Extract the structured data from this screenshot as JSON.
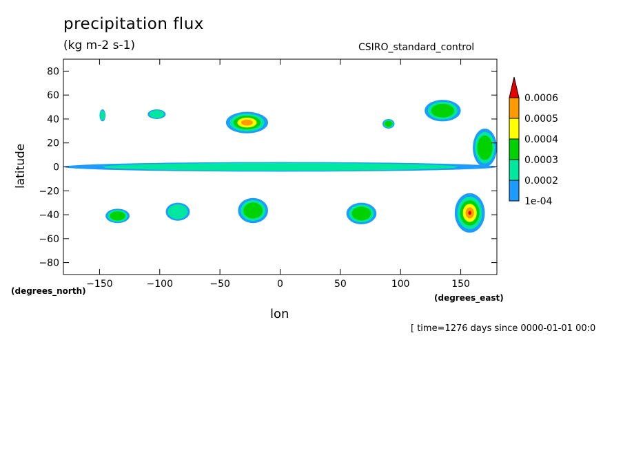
{
  "header": {
    "title": "precipitation flux",
    "units": "(kg m-2 s-1)",
    "model": "CSIRO_standard_control",
    "time_note": "[ time=1276 days since 0000-01-01 00:0"
  },
  "chart_data": {
    "type": "heatmap",
    "xlabel": "lon",
    "ylabel": "latitude",
    "x_units_label": "(degrees_east)",
    "y_units_label": "(degrees_north)",
    "xlim": [
      -180,
      180
    ],
    "ylim": [
      -90,
      90
    ],
    "x_ticks": [
      -150,
      -100,
      -50,
      0,
      50,
      100,
      150
    ],
    "y_ticks": [
      80,
      60,
      40,
      20,
      0,
      -20,
      -40,
      -60,
      -80
    ],
    "grid": false,
    "colorbar": {
      "levels": [
        "1e-04",
        "0.0002",
        "0.0003",
        "0.0004",
        "0.0005",
        "0.0006"
      ],
      "colors": [
        "#1e9bff",
        "#00e8a0",
        "#00d200",
        "#ffff00",
        "#ff9a00",
        "#e60000"
      ],
      "placement": "right"
    },
    "features": [
      {
        "lon": [
          -180,
          180
        ],
        "lat": [
          -4,
          4
        ],
        "level": 1
      },
      {
        "lon": [
          -150,
          -145
        ],
        "lat": [
          38,
          48
        ],
        "level": 1
      },
      {
        "lon": [
          -110,
          -95
        ],
        "lat": [
          40,
          48
        ],
        "level": 1
      },
      {
        "lon": [
          -45,
          -10
        ],
        "lat": [
          28,
          46
        ],
        "level": 4
      },
      {
        "lon": [
          85,
          95
        ],
        "lat": [
          32,
          40
        ],
        "level": 2
      },
      {
        "lon": [
          120,
          150
        ],
        "lat": [
          38,
          56
        ],
        "level": 2
      },
      {
        "lon": [
          -145,
          -125
        ],
        "lat": [
          -47,
          -35
        ],
        "level": 2
      },
      {
        "lon": [
          -95,
          -75
        ],
        "lat": [
          -45,
          -30
        ],
        "level": 1
      },
      {
        "lon": [
          -35,
          -10
        ],
        "lat": [
          -47,
          -26
        ],
        "level": 2
      },
      {
        "lon": [
          55,
          80
        ],
        "lat": [
          -48,
          -30
        ],
        "level": 2
      },
      {
        "lon": [
          145,
          170
        ],
        "lat": [
          -55,
          -22
        ],
        "level": 5
      },
      {
        "lon": [
          160,
          180
        ],
        "lat": [
          0,
          32
        ],
        "level": 2
      }
    ]
  }
}
